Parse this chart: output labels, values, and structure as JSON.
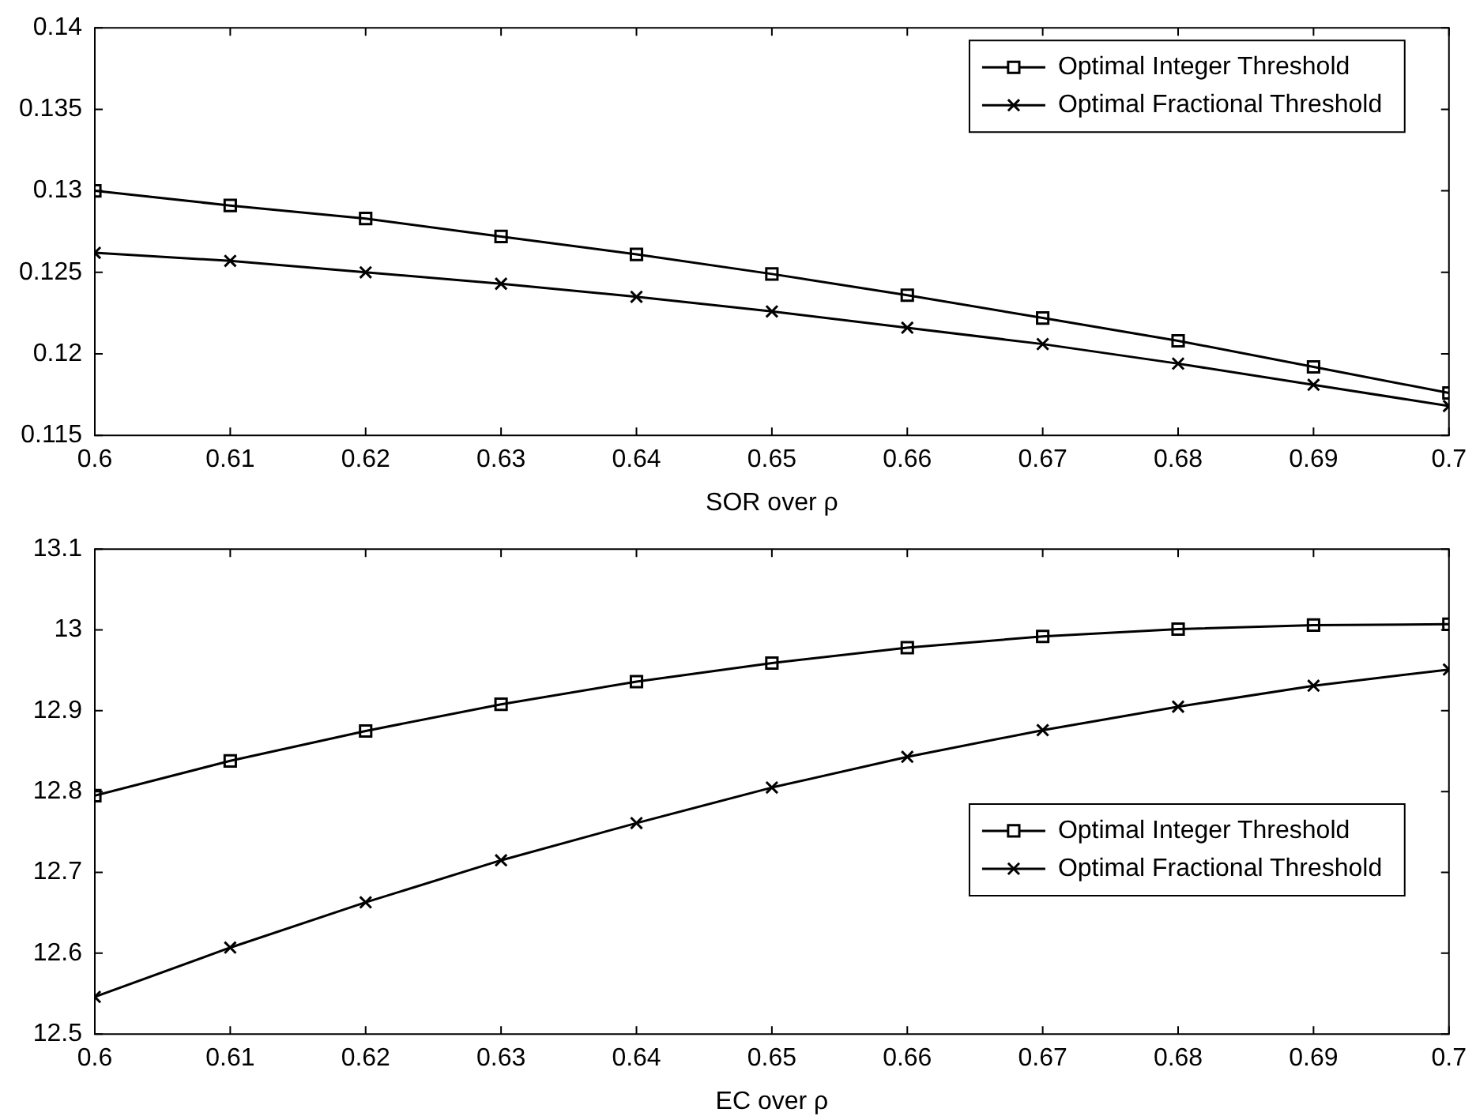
{
  "chart_data": [
    {
      "type": "line",
      "xlabel": "SOR over ρ",
      "x": [
        0.6,
        0.61,
        0.62,
        0.63,
        0.64,
        0.65,
        0.66,
        0.67,
        0.68,
        0.69,
        0.7
      ],
      "xlim": [
        0.6,
        0.7
      ],
      "xticks": [
        0.6,
        0.61,
        0.62,
        0.63,
        0.64,
        0.65,
        0.66,
        0.67,
        0.68,
        0.69,
        0.7
      ],
      "ylim": [
        0.115,
        0.14
      ],
      "yticks": [
        0.115,
        0.12,
        0.125,
        0.13,
        0.135,
        0.14
      ],
      "grid": false,
      "legend": "top right",
      "line_style": "solid",
      "series": [
        {
          "name": "Optimal Integer Threshold",
          "color": "#000000",
          "marker": "square",
          "values": [
            0.13,
            0.1291,
            0.1283,
            0.1272,
            0.1261,
            0.1249,
            0.1236,
            0.1222,
            0.1208,
            0.1192,
            0.1176
          ]
        },
        {
          "name": "Optimal Fractional Threshold",
          "color": "#000000",
          "marker": "cross",
          "values": [
            0.1262,
            0.1257,
            0.125,
            0.1243,
            0.1235,
            0.1226,
            0.1216,
            0.1206,
            0.1194,
            0.1181,
            0.1168
          ]
        }
      ]
    },
    {
      "type": "line",
      "xlabel": "EC over ρ",
      "x": [
        0.6,
        0.61,
        0.62,
        0.63,
        0.64,
        0.65,
        0.66,
        0.67,
        0.68,
        0.69,
        0.7
      ],
      "xlim": [
        0.6,
        0.7
      ],
      "xticks": [
        0.6,
        0.61,
        0.62,
        0.63,
        0.64,
        0.65,
        0.66,
        0.67,
        0.68,
        0.69,
        0.7
      ],
      "ylim": [
        12.5,
        13.1
      ],
      "yticks": [
        12.5,
        12.6,
        12.7,
        12.8,
        12.9,
        13,
        13.1
      ],
      "grid": false,
      "legend": "right",
      "line_style": "solid",
      "series": [
        {
          "name": "Optimal Integer Threshold",
          "color": "#000000",
          "marker": "square",
          "values": [
            12.795,
            12.838,
            12.875,
            12.908,
            12.936,
            12.959,
            12.978,
            12.992,
            13.001,
            13.006,
            13.007
          ]
        },
        {
          "name": "Optimal Fractional Threshold",
          "color": "#000000",
          "marker": "cross",
          "values": [
            12.546,
            12.607,
            12.663,
            12.715,
            12.761,
            12.805,
            12.843,
            12.876,
            12.905,
            12.931,
            12.951
          ]
        }
      ]
    }
  ]
}
